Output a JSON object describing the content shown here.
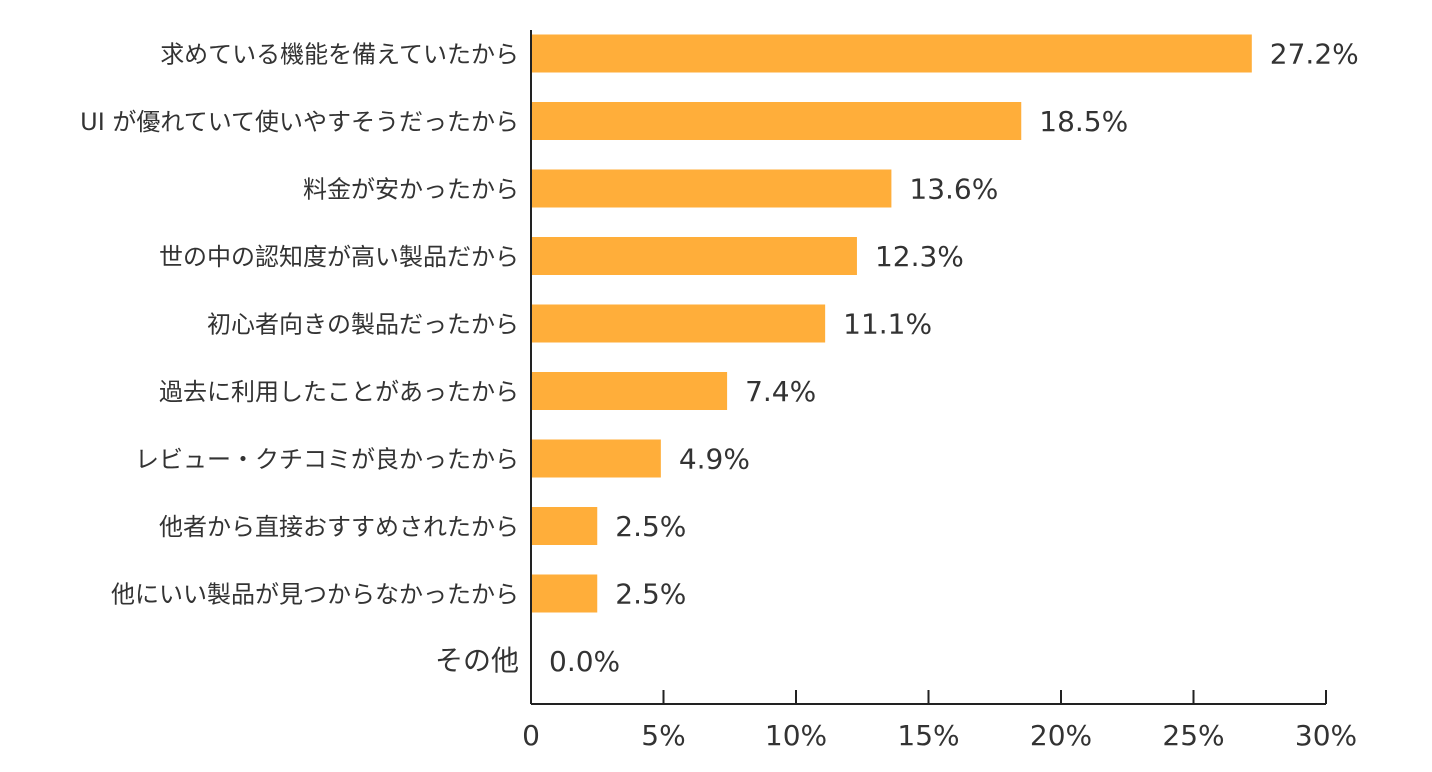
{
  "chart_data": {
    "type": "bar",
    "orientation": "horizontal",
    "categories": [
      "求めている機能を備えていたから",
      "UI が優れていて使いやすそうだったから",
      "料金が安かったから",
      "世の中の認知度が高い製品だから",
      "初心者向きの製品だったから",
      "過去に利用したことがあったから",
      "レビュー・クチコミが良かったから",
      "他者から直接おすすめされたから",
      "他にいい製品が見つからなかったから",
      "その他"
    ],
    "values": [
      27.2,
      18.5,
      13.6,
      12.3,
      11.1,
      7.4,
      4.9,
      2.5,
      2.5,
      0.0
    ],
    "value_labels": [
      "27.2%",
      "18.5%",
      "13.6%",
      "12.3%",
      "11.1%",
      "7.4%",
      "4.9%",
      "2.5%",
      "2.5%",
      "0.0%"
    ],
    "xlim": [
      0,
      30
    ],
    "x_ticks": [
      0,
      5,
      10,
      15,
      20,
      25,
      30
    ],
    "x_tick_labels": [
      "0",
      "5%",
      "10%",
      "15%",
      "20%",
      "25%",
      "30%"
    ],
    "title": "",
    "xlabel": "",
    "ylabel": "",
    "grid": false,
    "colors": {
      "bar": "#FFAE3A",
      "axis": "#222222",
      "text": "#333333"
    }
  }
}
